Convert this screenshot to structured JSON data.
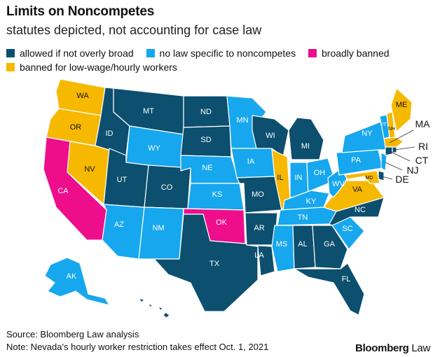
{
  "title": "Limits on Noncompetes",
  "subtitle": "statutes depicted, not accounting for case law",
  "legend": [
    {
      "label": "allowed if not overly broad",
      "color": "#0c4f6e"
    },
    {
      "label": "no law specific to noncompetes",
      "color": "#16a7ee"
    },
    {
      "label": "broadly banned",
      "color": "#ee0e8c"
    },
    {
      "label": "banned for low-wage/hourly workers",
      "color": "#f7b800"
    }
  ],
  "states": {
    "WA": "WA",
    "OR": "OR",
    "CA": "CA",
    "NV": "NV",
    "ID": "ID",
    "MT": "MT",
    "WY": "WY",
    "UT": "UT",
    "AZ": "AZ",
    "CO": "CO",
    "NM": "NM",
    "ND": "ND",
    "SD": "SD",
    "NE": "NE",
    "KS": "KS",
    "OK": "OK",
    "TX": "TX",
    "MN": "MN",
    "IA": "IA",
    "MO": "MO",
    "AR": "AR",
    "LA": "LA",
    "WI": "WI",
    "IL": "IL",
    "MI": "MI",
    "IN": "IN",
    "OH": "OH",
    "KY": "KY",
    "TN": "TN",
    "MS": "MS",
    "AL": "AL",
    "GA": "GA",
    "FL": "FL",
    "SC": "SC",
    "NC": "NC",
    "VA": "VA",
    "WV": "WV",
    "PA": "PA",
    "NY": "NY",
    "VT": "VT",
    "NH": "NH",
    "ME": "ME",
    "MA": "MA",
    "RI": "RI",
    "CT": "CT",
    "NJ": "NJ",
    "DE": "DE",
    "MD": "MD",
    "AK": "AK"
  },
  "source": "Source: Bloomberg Law analysis",
  "note": "Note: Nevada's hourly worker restriction takes effect Oct. 1, 2021",
  "brand": {
    "bold": "Bloomberg",
    "normal": " Law"
  }
}
